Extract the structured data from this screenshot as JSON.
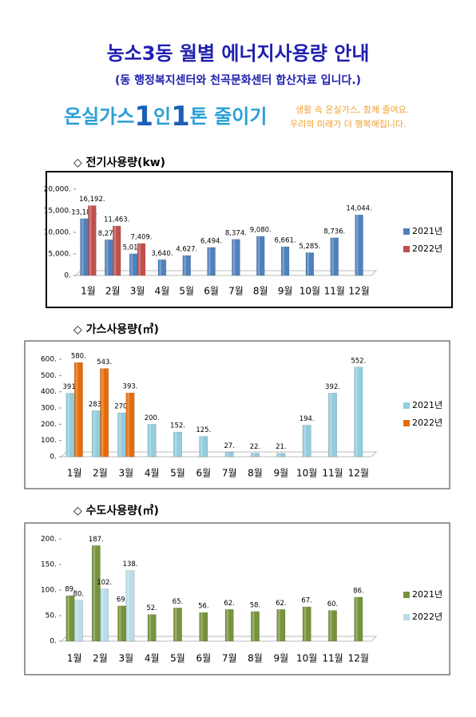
{
  "header": {
    "title": "농소3동 월별 에너지사용량 안내",
    "subtitle": "(동 행정복지센터와 천곡문화센터 합산자료 입니다.)"
  },
  "banner": {
    "slogan": [
      "온실가스",
      "1",
      "인",
      "1",
      "톤 줄이기"
    ],
    "tagline": [
      "생활 속 온실가스, 함께 줄여요.",
      "우리의 미래가 더 행복해집니다."
    ]
  },
  "chart_data": [
    {
      "type": "bar",
      "title": "◇ 전기사용량(kw)",
      "categories": [
        "1월",
        "2월",
        "3월",
        "4월",
        "5월",
        "6월",
        "7월",
        "8월",
        "9월",
        "10월",
        "11월",
        "12월"
      ],
      "series": [
        {
          "name": "2021년",
          "color": "#4f81bd",
          "values": [
            13180,
            8279,
            5017,
            3640,
            4627,
            6494,
            8374,
            9080,
            6661,
            5285,
            8736,
            14044
          ],
          "value_labels": [
            "13,180.",
            "8,279.",
            "5,017.",
            "3,640.",
            "4,627.",
            "6,494.",
            "8,374.",
            "9,080.",
            "6,661.",
            "5,285.",
            "8,736.",
            "14,044."
          ]
        },
        {
          "name": "2022년",
          "color": "#c0504d",
          "values": [
            16192,
            11463,
            7409,
            null,
            null,
            null,
            null,
            null,
            null,
            null,
            null,
            null
          ],
          "value_labels": [
            "16,192.",
            "11,463.",
            "7,409.",
            null,
            null,
            null,
            null,
            null,
            null,
            null,
            null,
            null
          ]
        }
      ],
      "ylim": [
        0,
        20000
      ],
      "yticks": [
        {
          "value": 0,
          "label": "0."
        },
        {
          "value": 5000,
          "label": "5,000."
        },
        {
          "value": 10000,
          "label": "10,000."
        },
        {
          "value": 15000,
          "label": "15,000."
        },
        {
          "value": 20000,
          "label": "20,000."
        }
      ],
      "grid": false,
      "legend": "right"
    },
    {
      "type": "bar",
      "title": "◇ 가스사용량(㎥)",
      "categories": [
        "1월",
        "2월",
        "3월",
        "4월",
        "5월",
        "6월",
        "7월",
        "8월",
        "9월",
        "10월",
        "11월",
        "12월"
      ],
      "series": [
        {
          "name": "2021년",
          "color": "#93cddd",
          "values": [
            391,
            283,
            270,
            200,
            152,
            125,
            27,
            22,
            21,
            194,
            392,
            552
          ],
          "value_labels": [
            "391.",
            "283.",
            "270.",
            "200.",
            "152.",
            "125.",
            "27.",
            "22.",
            "21.",
            "194.",
            "392.",
            "552."
          ]
        },
        {
          "name": "2022년",
          "color": "#e46c0a",
          "values": [
            580,
            543,
            393,
            null,
            null,
            null,
            null,
            null,
            null,
            null,
            null,
            null
          ],
          "value_labels": [
            "580.",
            "543.",
            "393.",
            null,
            null,
            null,
            null,
            null,
            null,
            null,
            null,
            null
          ]
        }
      ],
      "ylim": [
        0,
        600
      ],
      "yticks": [
        {
          "value": 0,
          "label": "0."
        },
        {
          "value": 100,
          "label": "100."
        },
        {
          "value": 200,
          "label": "200."
        },
        {
          "value": 300,
          "label": "300."
        },
        {
          "value": 400,
          "label": "400."
        },
        {
          "value": 500,
          "label": "500."
        },
        {
          "value": 600,
          "label": "600."
        }
      ],
      "grid": false,
      "legend": "right"
    },
    {
      "type": "bar",
      "title": "◇ 수도사용량(㎥)",
      "categories": [
        "1월",
        "2월",
        "3월",
        "4월",
        "5월",
        "6월",
        "7월",
        "8월",
        "9월",
        "10월",
        "11월",
        "12월"
      ],
      "series": [
        {
          "name": "2021년",
          "color": "#77933c",
          "values": [
            89,
            187,
            69,
            52,
            65,
            56,
            62,
            58,
            62,
            67,
            60,
            86
          ],
          "value_labels": [
            "89.",
            "187.",
            "69.",
            "52.",
            "65.",
            "56.",
            "62.",
            "58.",
            "62.",
            "67.",
            "60.",
            "86."
          ]
        },
        {
          "name": "2022년",
          "color": "#b7dee8",
          "values": [
            80,
            102,
            138,
            null,
            null,
            null,
            null,
            null,
            null,
            null,
            null,
            null
          ],
          "value_labels": [
            "80.",
            "102.",
            "138.",
            null,
            null,
            null,
            null,
            null,
            null,
            null,
            null,
            null
          ]
        }
      ],
      "ylim": [
        0,
        200
      ],
      "yticks": [
        {
          "value": 0,
          "label": "0."
        },
        {
          "value": 50,
          "label": "50."
        },
        {
          "value": 100,
          "label": "100."
        },
        {
          "value": 150,
          "label": "150."
        },
        {
          "value": 200,
          "label": "200."
        }
      ],
      "grid": false,
      "legend": "right"
    }
  ]
}
